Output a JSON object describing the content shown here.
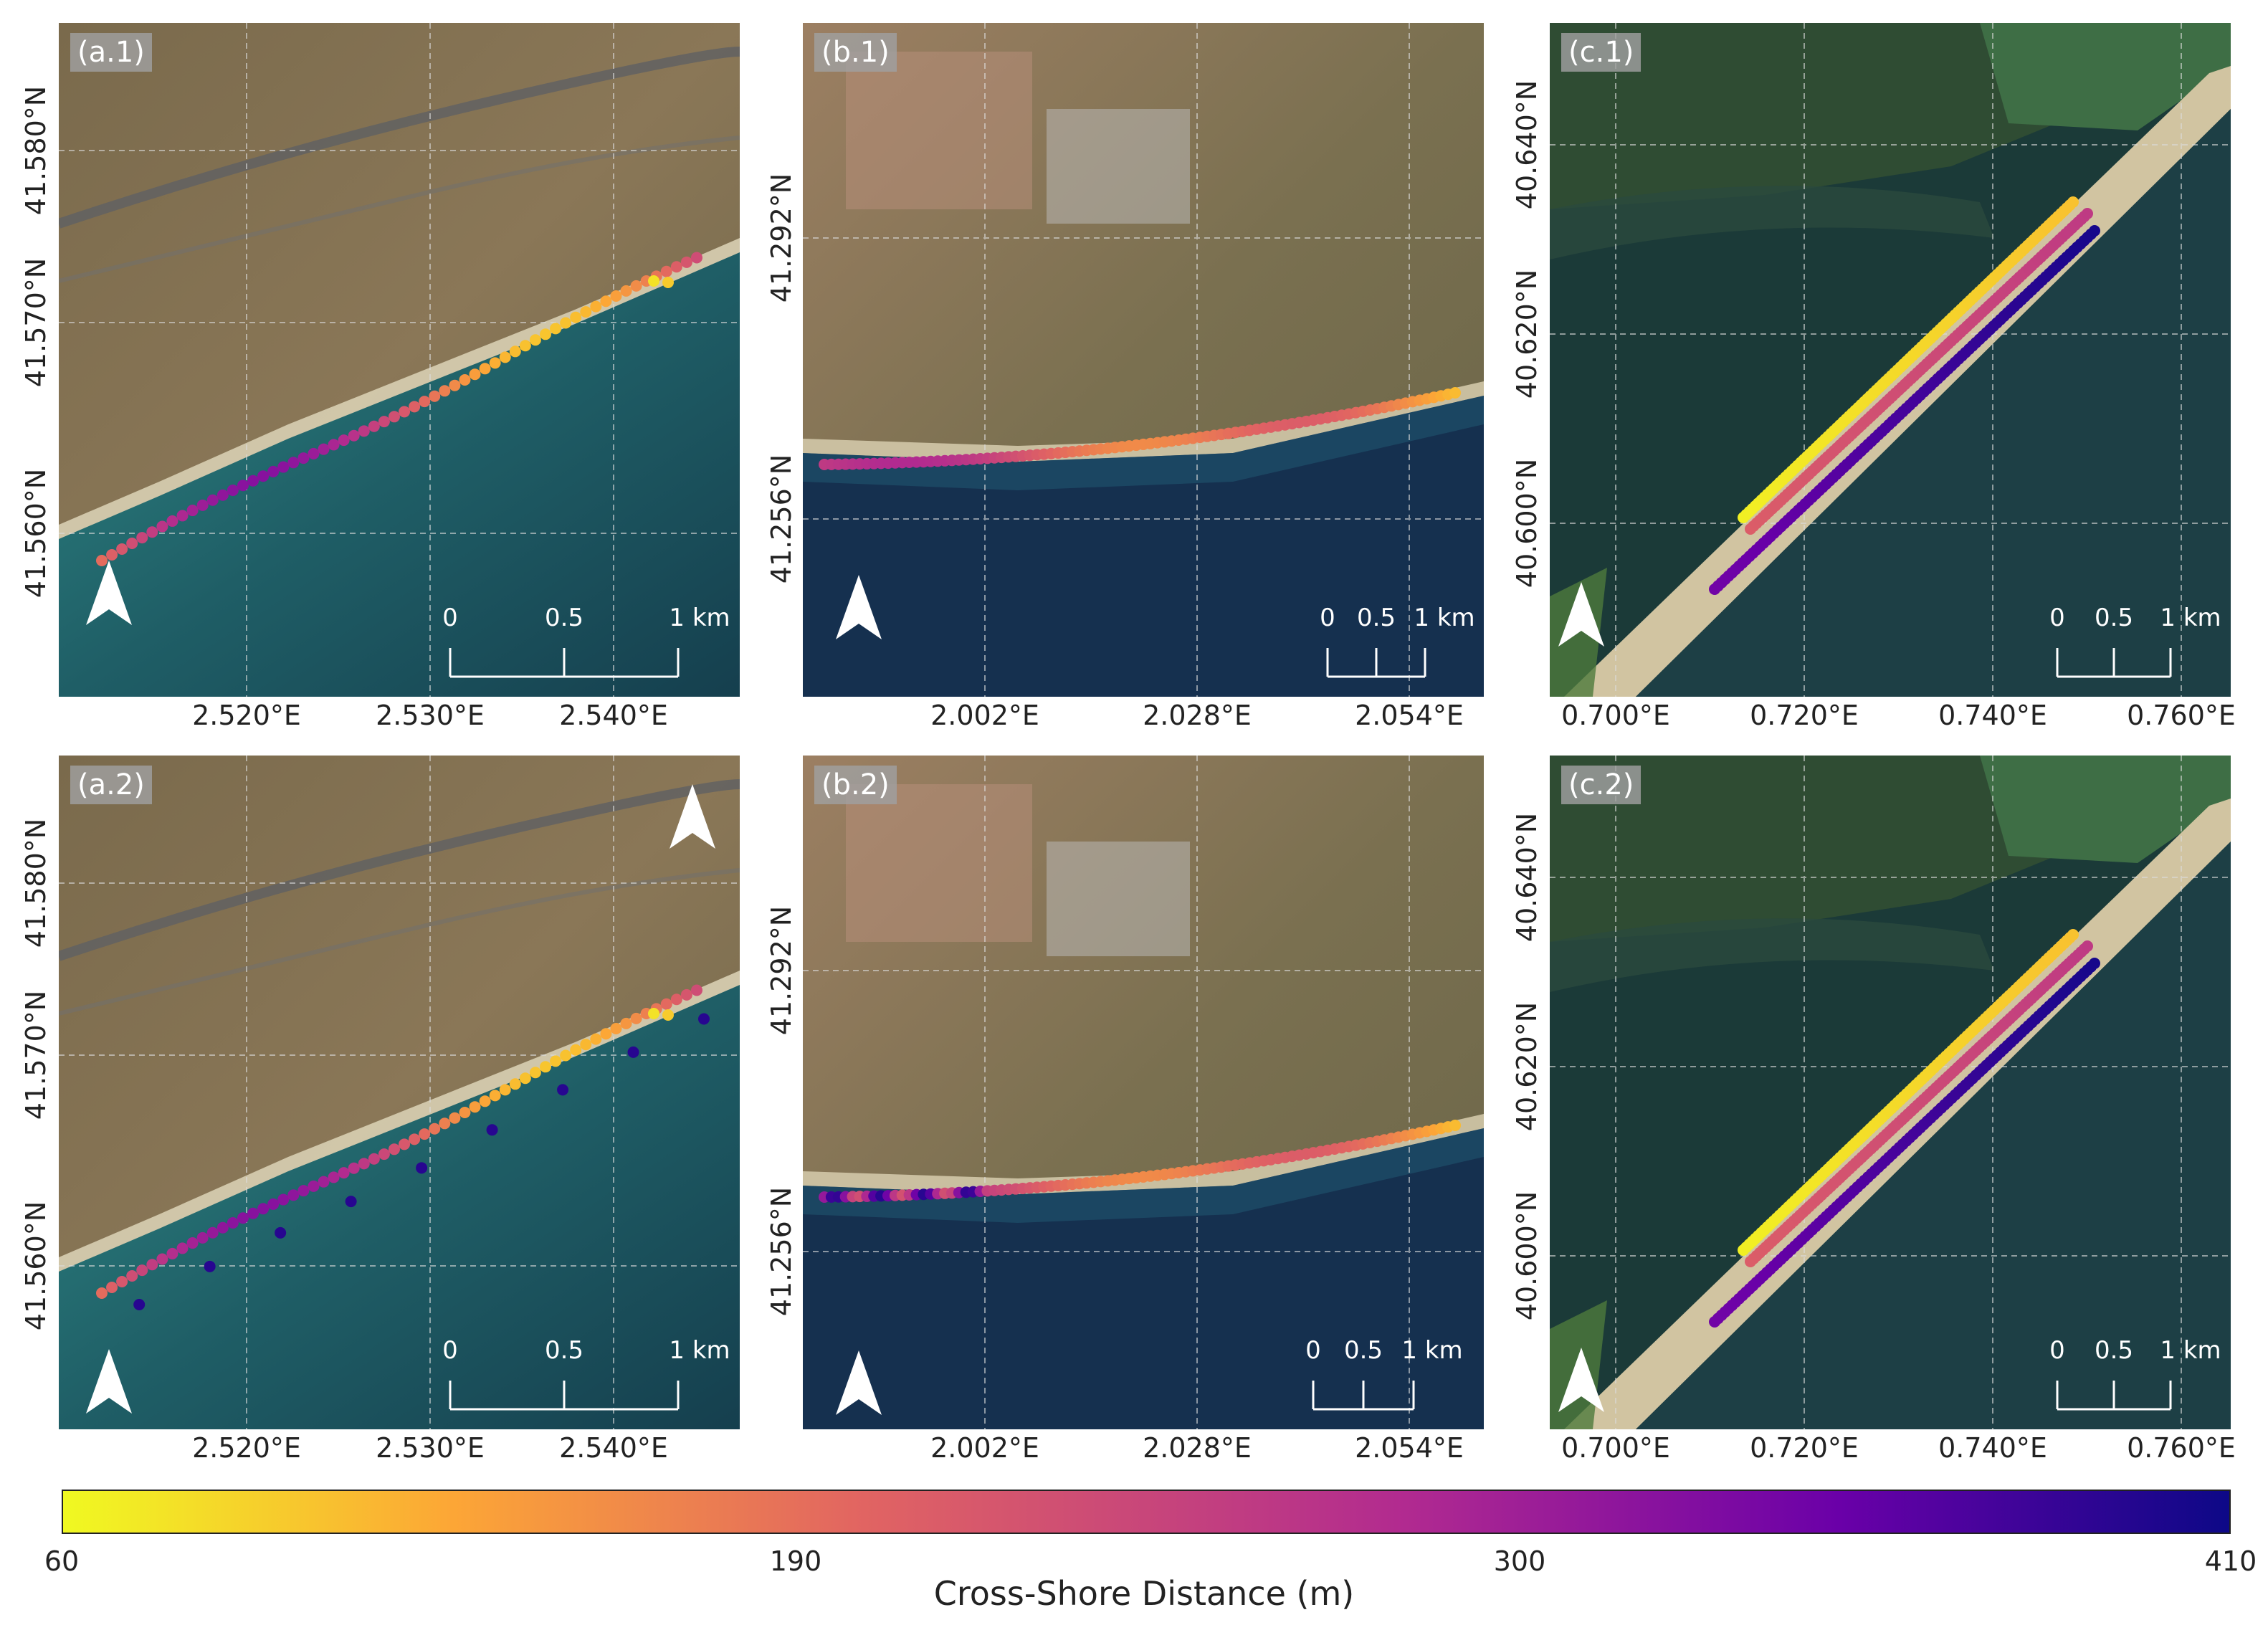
{
  "colormap": {
    "name": "plasma",
    "low": "#f0f921",
    "mid": "#cc4778",
    "high": "#0d0887"
  },
  "colorbar": {
    "ticks": [
      "60",
      "190",
      "300",
      "410"
    ],
    "label": "Cross-Shore Distance (m)",
    "range": [
      60,
      410
    ]
  },
  "panels": [
    {
      "id": "a1",
      "label": "(a.1)",
      "column": "a",
      "yticks": [
        "41.580°N",
        "41.570°N",
        "41.560°N"
      ],
      "xticks": [
        "2.520°E",
        "2.530°E",
        "2.540°E"
      ],
      "scalebar": [
        "0",
        "0.5",
        "1 km"
      ]
    },
    {
      "id": "b1",
      "label": "(b.1)",
      "column": "b",
      "yticks": [
        "41.292°N",
        "41.256°N"
      ],
      "xticks": [
        "2.002°E",
        "2.028°E",
        "2.054°E"
      ],
      "scalebar": [
        "0",
        "0.5",
        "1 km"
      ]
    },
    {
      "id": "c1",
      "label": "(c.1)",
      "column": "c",
      "yticks": [
        "40.640°N",
        "40.620°N",
        "40.600°N"
      ],
      "xticks": [
        "0.700°E",
        "0.720°E",
        "0.740°E",
        "0.760°E"
      ],
      "scalebar": [
        "0",
        "0.5",
        "1 km"
      ]
    },
    {
      "id": "a2",
      "label": "(a.2)",
      "column": "a",
      "yticks": [
        "41.580°N",
        "41.570°N",
        "41.560°N"
      ],
      "xticks": [
        "2.520°E",
        "2.530°E",
        "2.540°E"
      ],
      "scalebar": [
        "0",
        "0.5",
        "1 km"
      ]
    },
    {
      "id": "b2",
      "label": "(b.2)",
      "column": "b",
      "yticks": [
        "41.292°N",
        "41.256°N"
      ],
      "xticks": [
        "2.002°E",
        "2.028°E",
        "2.054°E"
      ],
      "scalebar": [
        "0",
        "0.5",
        "1 km"
      ]
    },
    {
      "id": "c2",
      "label": "(c.2)",
      "column": "c",
      "yticks": [
        "40.640°N",
        "40.620°N",
        "40.600°N"
      ],
      "xticks": [
        "0.700°E",
        "0.720°E",
        "0.740°E",
        "0.760°E"
      ],
      "scalebar": [
        "0",
        "0.5",
        "1 km"
      ]
    }
  ]
}
